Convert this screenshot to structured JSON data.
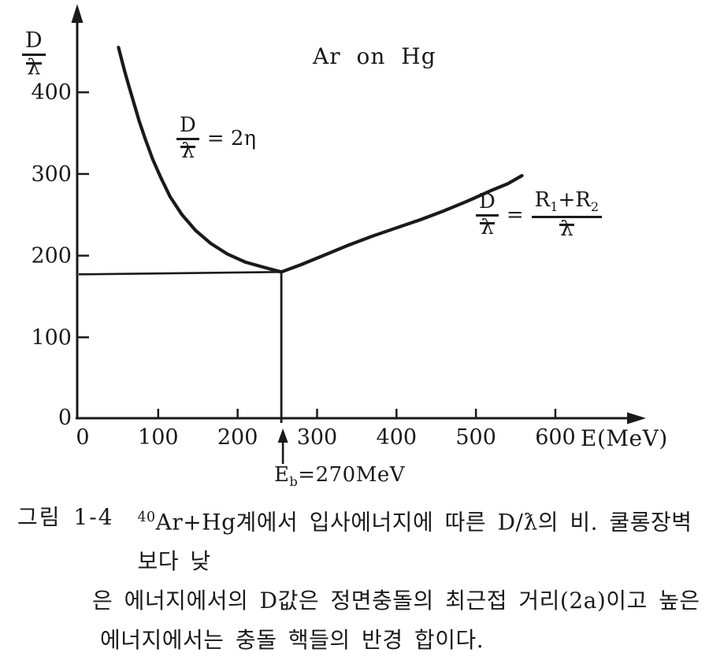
{
  "figure": {
    "title": "Ar on Hg",
    "x_axis_label": "E(MeV)",
    "y_axis_label": {
      "num": "D",
      "den": "λ"
    },
    "formula_coulomb": {
      "num": "D",
      "den": "λ",
      "rhs": "= 2η"
    },
    "formula_radii": {
      "num1": "D",
      "den1": "λ",
      "eq": "=",
      "num2_base1": "R",
      "num2_sub1": "1",
      "num2_mid": "+R",
      "num2_sub2": "2",
      "den2": "λ"
    },
    "barrier_label": {
      "base": "E",
      "sub": "b",
      "rest": "=270MeV"
    }
  },
  "caption": {
    "fig_label": "그림 1-4",
    "line1_sup": "40",
    "line1_text": "Ar+Hg계에서 입사에너지에 따른 D/ƛ의 비. 쿨롱장벽보다 낮",
    "line2": "은 에너지에서의 D값은 정면충돌의 최근접 거리(2a)이고 높은",
    "line3": "에너지에서는 충돌 핵들의 반경 합이다."
  },
  "colors": {
    "ink": "#1a1a1a",
    "background": "#ffffff"
  },
  "chart_data": {
    "type": "line",
    "title": "Ar on Hg",
    "xlabel": "E(MeV)",
    "ylabel": "D/ƛ",
    "xlim": [
      0,
      640
    ],
    "ylim": [
      0,
      480
    ],
    "x_ticks": [
      0,
      100,
      200,
      300,
      400,
      500,
      600
    ],
    "y_ticks": [
      0,
      100,
      200,
      300,
      400
    ],
    "grid": false,
    "legend_position": "none",
    "series": [
      {
        "name": "coulomb-branch",
        "label": "D/ƛ = 2η",
        "points": [
          [
            50,
            455
          ],
          [
            54,
            440
          ],
          [
            58,
            425
          ],
          [
            63,
            408
          ],
          [
            69,
            388
          ],
          [
            76,
            365
          ],
          [
            84,
            342
          ],
          [
            93,
            318
          ],
          [
            103,
            296
          ],
          [
            115,
            272
          ],
          [
            130,
            250
          ],
          [
            147,
            231
          ],
          [
            166,
            215
          ],
          [
            187,
            202
          ],
          [
            210,
            192
          ],
          [
            232,
            186
          ],
          [
            255,
            180
          ]
        ]
      },
      {
        "name": "sum-of-radii-branch",
        "label": "D/ƛ = (R₁+R₂)/ƛ",
        "points": [
          [
            255,
            180
          ],
          [
            280,
            189
          ],
          [
            310,
            201
          ],
          [
            340,
            213
          ],
          [
            370,
            224
          ],
          [
            400,
            234
          ],
          [
            430,
            244
          ],
          [
            460,
            255
          ],
          [
            490,
            267
          ],
          [
            520,
            280
          ],
          [
            540,
            288
          ],
          [
            558,
            298
          ]
        ]
      }
    ],
    "reference_point": {
      "E": 255,
      "D_over_lambda": 180
    },
    "barrier_annotation": {
      "label": "Eb=270MeV",
      "arrow_x": 257,
      "value_MeV": 270
    }
  }
}
